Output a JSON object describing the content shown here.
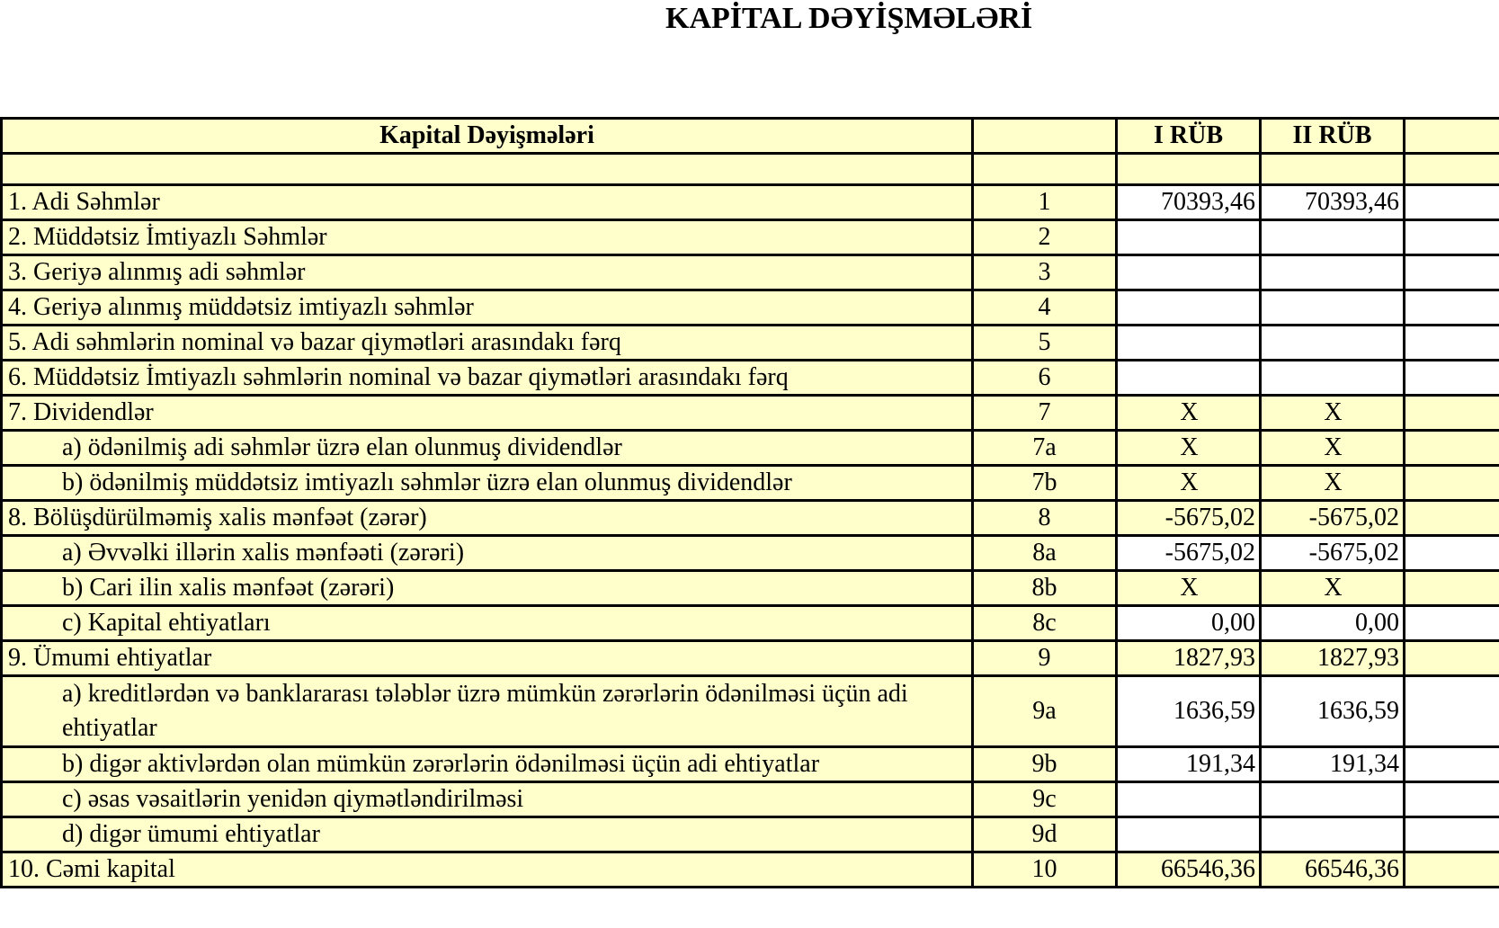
{
  "title": "KAPİTAL DƏYİŞMƏLƏRİ",
  "table": {
    "headers": {
      "label": "Kapital Dəyişmələri",
      "code": "",
      "q1": "I RÜB",
      "q2": "II RÜB"
    },
    "rows": [
      {
        "label": "1. Adi Səhmlər",
        "code": "1",
        "q1": "70393,46",
        "q2": "70393,46",
        "indent": false,
        "highlight": false
      },
      {
        "label": "2. Müddətsiz İmtiyazlı Səhmlər",
        "code": "2",
        "q1": "",
        "q2": "",
        "indent": false,
        "highlight": false
      },
      {
        "label": "3. Geriyə alınmış adi səhmlər",
        "code": "3",
        "q1": "",
        "q2": "",
        "indent": false,
        "highlight": false
      },
      {
        "label": "4. Geriyə alınmış müddətsiz imtiyazlı səhmlər",
        "code": "4",
        "q1": "",
        "q2": "",
        "indent": false,
        "highlight": false
      },
      {
        "label": "5. Adi səhmlərin nominal və bazar qiymətləri arasındakı fərq",
        "code": "5",
        "q1": "",
        "q2": "",
        "indent": false,
        "highlight": false
      },
      {
        "label": "6. Müddətsiz İmtiyazlı səhmlərin nominal və bazar qiymətləri arasındakı fərq",
        "code": "6",
        "q1": "",
        "q2": "",
        "indent": false,
        "highlight": false
      },
      {
        "label": "7. Dividendlər",
        "code": "7",
        "q1": "X",
        "q2": "X",
        "indent": false,
        "highlight": true
      },
      {
        "label": "a) ödənilmiş adi səhmlər üzrə elan olunmuş dividendlər",
        "code": "7a",
        "q1": "X",
        "q2": "X",
        "indent": true,
        "highlight": true
      },
      {
        "label": "b) ödənilmiş müddətsiz imtiyazlı səhmlər üzrə elan olunmuş dividendlər",
        "code": "7b",
        "q1": "X",
        "q2": "X",
        "indent": true,
        "highlight": true
      },
      {
        "label": "8. Bölüşdürülməmiş xalis mənfəət (zərər)",
        "code": "8",
        "q1": "-5675,02",
        "q2": "-5675,02",
        "indent": false,
        "highlight": true
      },
      {
        "label": "a) Əvvəlki illərin xalis mənfəəti (zərəri)",
        "code": "8a",
        "q1": "-5675,02",
        "q2": "-5675,02",
        "indent": true,
        "highlight": false
      },
      {
        "label": "b) Cari ilin xalis mənfəət (zərəri)",
        "code": "8b",
        "q1": "X",
        "q2": "X",
        "indent": true,
        "highlight": true
      },
      {
        "label": "c) Kapital ehtiyatları",
        "code": "8c",
        "q1": "0,00",
        "q2": "0,00",
        "indent": true,
        "highlight": false
      },
      {
        "label": "9. Ümumi ehtiyatlar",
        "code": "9",
        "q1": "1827,93",
        "q2": "1827,93",
        "indent": false,
        "highlight": true
      },
      {
        "label": "a) kreditlərdən və banklararası  tələblər üzrə mümkün zərərlərin ödənilməsi üçün adi ehtiyatlar",
        "code": "9a",
        "q1": "1636,59",
        "q2": "1636,59",
        "indent": true,
        "highlight": false,
        "wrap": true
      },
      {
        "label": "b) digər aktivlərdən olan mümkün zərərlərin ödənilməsi üçün adi ehtiyatlar",
        "code": "9b",
        "q1": "191,34",
        "q2": "191,34",
        "indent": true,
        "highlight": false
      },
      {
        "label": "c) əsas vəsaitlərin yenidən qiymətləndirilməsi",
        "code": "9c",
        "q1": "",
        "q2": "",
        "indent": true,
        "highlight": false
      },
      {
        "label": "d) digər ümumi ehtiyatlar",
        "code": "9d",
        "q1": "",
        "q2": "",
        "indent": true,
        "highlight": false
      },
      {
        "label": "10. Cəmi kapital",
        "code": "10",
        "q1": "66546,36",
        "q2": "66546,36",
        "indent": false,
        "highlight": true
      }
    ]
  },
  "colors": {
    "header_fill": "#ffffcc",
    "value_fill": "#ffffff",
    "border": "#000000"
  }
}
